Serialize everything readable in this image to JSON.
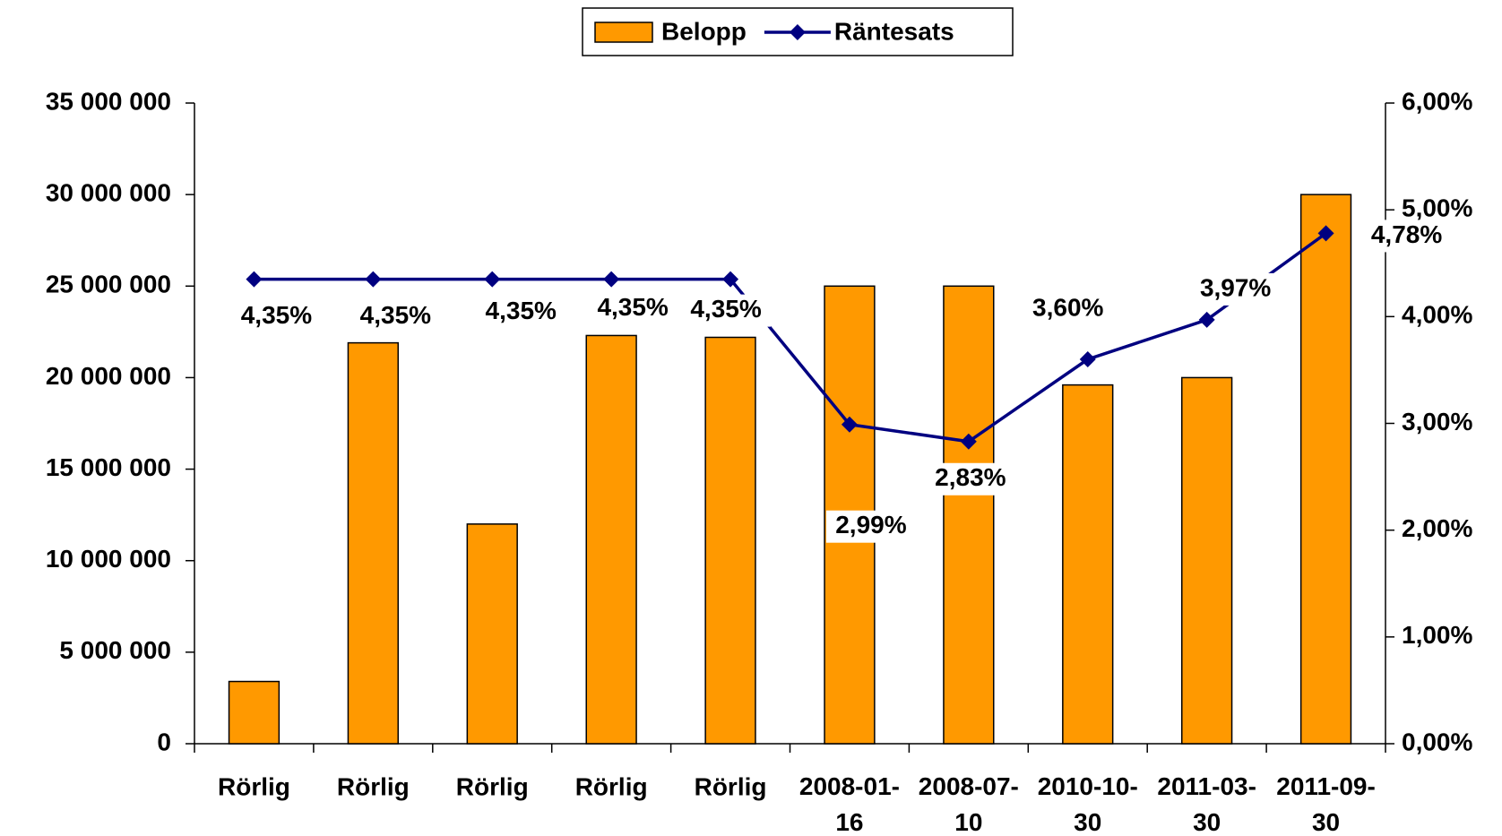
{
  "chart_data": {
    "type": "bar",
    "categories": [
      "Rörlig",
      "Rörlig",
      "Rörlig",
      "Rörlig",
      "Rörlig",
      "2008-01-16",
      "2008-07-10",
      "2010-10-30",
      "2011-03-30",
      "2011-09-30"
    ],
    "series": [
      {
        "name": "Belopp",
        "type": "bar",
        "color": "#ff9900",
        "values": [
          3400000,
          21900000,
          12000000,
          22300000,
          22200000,
          25000000,
          25000000,
          19600000,
          20000000,
          30000000
        ]
      },
      {
        "name": "Räntesats",
        "type": "line",
        "axis": "y2",
        "color": "#000080",
        "values": [
          4.35,
          4.35,
          4.35,
          4.35,
          4.35,
          2.99,
          2.83,
          3.6,
          3.97,
          4.78
        ],
        "value_labels": [
          "4,35%",
          "4,35%",
          "4,35%",
          "4,35%",
          "4,35%",
          "2,99%",
          "2,83%",
          "3,60%",
          "3,97%",
          "4,78%"
        ]
      }
    ],
    "ylim": [
      0,
      35000000
    ],
    "yticks": [
      0,
      {
        "value": 5000000,
        "label": "5 000 000"
      },
      {
        "value": 10000000,
        "label": "10 000 000"
      },
      {
        "value": 15000000,
        "label": "15 000 000"
      },
      {
        "value": 20000000,
        "label": "20 000 000"
      },
      {
        "value": 25000000,
        "label": "25 000 000"
      },
      {
        "value": 30000000,
        "label": "30 000 000"
      },
      {
        "value": 35000000,
        "label": "35 000 000"
      }
    ],
    "y2lim": [
      0,
      6
    ],
    "y2ticks": [
      {
        "value": 0,
        "label": "0,00%"
      },
      {
        "value": 1,
        "label": "1,00%"
      },
      {
        "value": 2,
        "label": "2,00%"
      },
      {
        "value": 3,
        "label": "3,00%"
      },
      {
        "value": 4,
        "label": "4,00%"
      },
      {
        "value": 5,
        "label": "5,00%"
      },
      {
        "value": 6,
        "label": "6,00%"
      }
    ],
    "legend": "top"
  }
}
